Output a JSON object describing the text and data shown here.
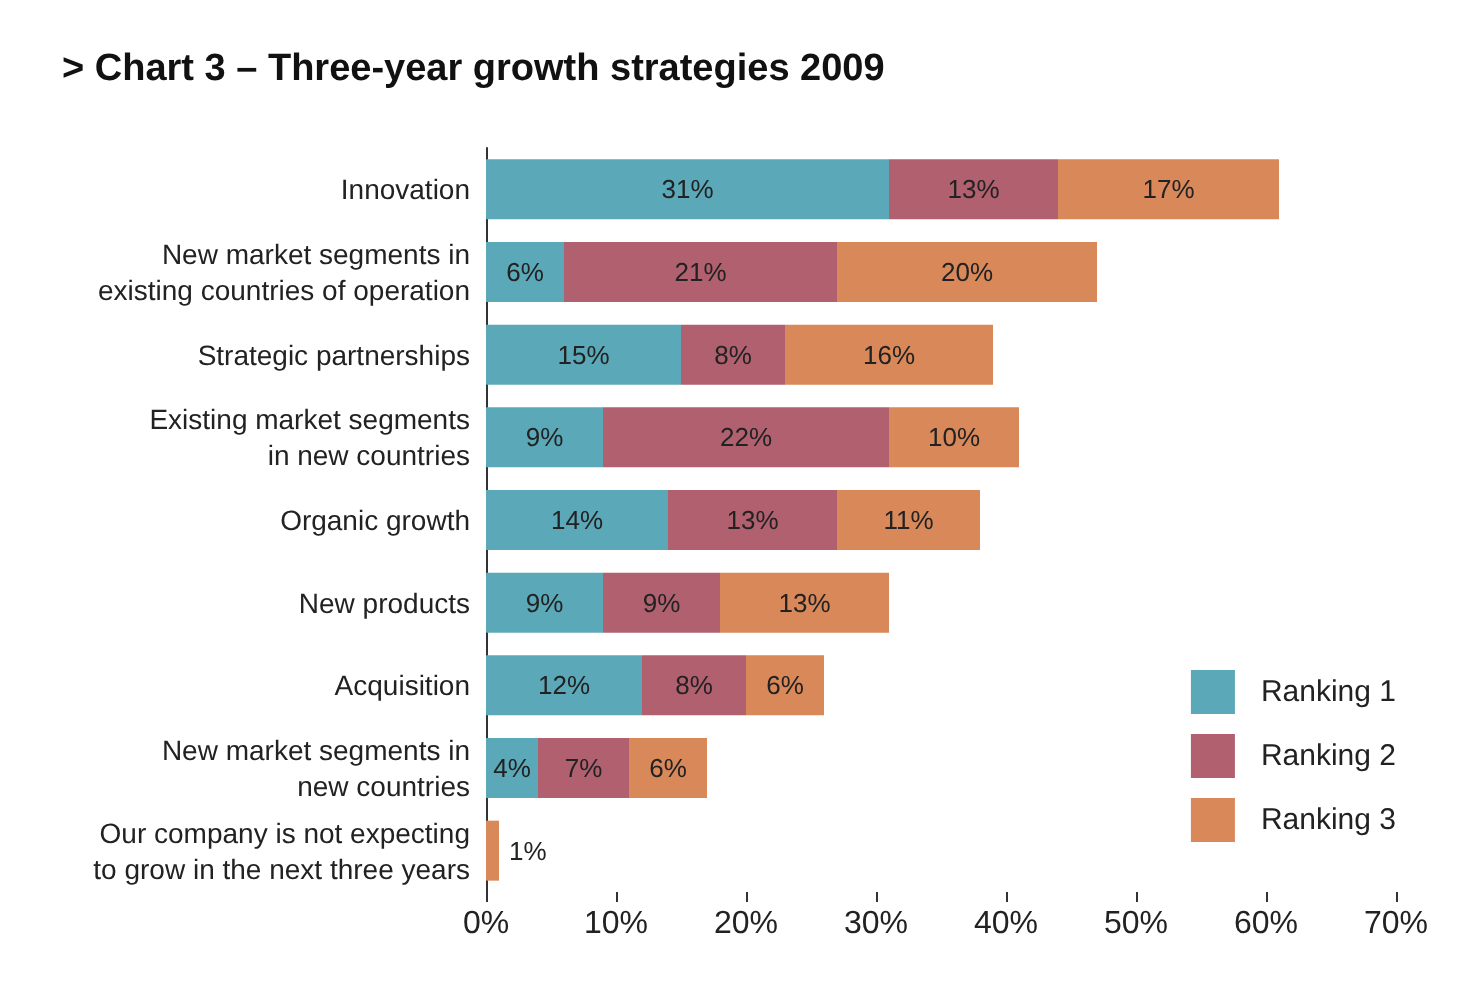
{
  "chart_data": {
    "type": "bar",
    "orientation": "horizontal",
    "stacked": true,
    "title": "> Chart 3 – Three-year growth strategies 2009",
    "categories": [
      "Innovation",
      "New market segments in\nexisting countries of operation",
      "Strategic partnerships",
      "Existing market segments\nin new countries",
      "Organic growth",
      "New products",
      "Acquisition",
      "New market segments in\nnew countries",
      "Our company is not expecting\nto grow in the next three years"
    ],
    "series": [
      {
        "name": "Ranking 1",
        "color": "#5ba8b8",
        "values": [
          31,
          6,
          15,
          9,
          14,
          9,
          12,
          4,
          null
        ],
        "value_labels": [
          "31%",
          "6%",
          "15%",
          "9%",
          "14%",
          "9%",
          "12%",
          "4%",
          null
        ]
      },
      {
        "name": "Ranking 2",
        "color": "#b0606e",
        "values": [
          13,
          21,
          8,
          22,
          13,
          9,
          8,
          7,
          null
        ],
        "value_labels": [
          "13%",
          "21%",
          "8%",
          "22%",
          "13%",
          "9%",
          "8%",
          "7%",
          null
        ]
      },
      {
        "name": "Ranking 3",
        "color": "#d9885a",
        "values": [
          17,
          20,
          16,
          10,
          11,
          13,
          6,
          6,
          1
        ],
        "value_labels": [
          "17%",
          "20%",
          "16%",
          "10%",
          "11%",
          "13%",
          "6%",
          "6%",
          "1%"
        ]
      }
    ],
    "xlim": [
      0,
      70
    ],
    "xticks": [
      {
        "value": 0,
        "label": "0%"
      },
      {
        "value": 10,
        "label": "10%"
      },
      {
        "value": 20,
        "label": "20%"
      },
      {
        "value": 30,
        "label": "30%"
      },
      {
        "value": 40,
        "label": "40%"
      },
      {
        "value": 50,
        "label": "50%"
      },
      {
        "value": 60,
        "label": "60%"
      },
      {
        "value": 70,
        "label": "70%"
      }
    ],
    "legend": "bottom right",
    "grid": false
  }
}
